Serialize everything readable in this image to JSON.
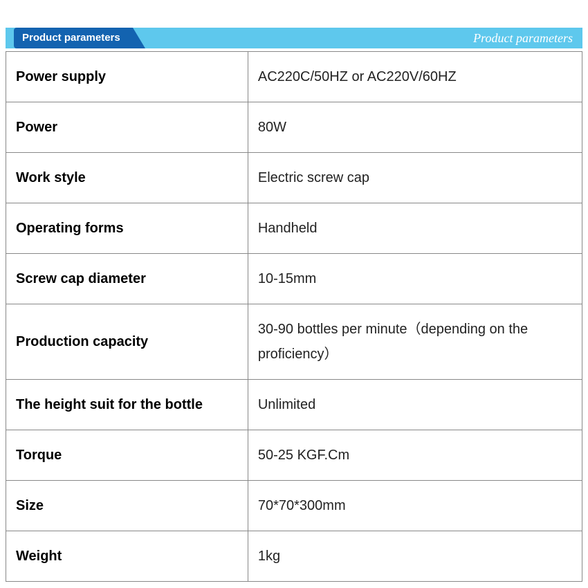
{
  "header": {
    "tab_label": "Product parameters",
    "script_label": "Product parameters",
    "bar_color": "#5ec8ed",
    "tab_color": "#1363b0",
    "text_color": "#ffffff"
  },
  "table": {
    "border_color": "#888888",
    "label_fontweight": 900,
    "value_fontweight": 300,
    "cell_fontsize": 20,
    "col_widths": [
      "42%",
      "58%"
    ],
    "rows": [
      {
        "label": "Power supply",
        "value": "AC220C/50HZ or AC220V/60HZ"
      },
      {
        "label": "Power",
        "value": "80W"
      },
      {
        "label": "Work style",
        "value": "Electric screw cap"
      },
      {
        "label": "Operating forms",
        "value": "Handheld"
      },
      {
        "label": "Screw cap diameter",
        "value": "10-15mm"
      },
      {
        "label": "Production capacity",
        "value": "30-90 bottles per minute（depending on the proficiency）"
      },
      {
        "label": "The height suit for the bottle",
        "value": "Unlimited"
      },
      {
        "label": "Torque",
        "value": "50-25 KGF.Cm"
      },
      {
        "label": "Size",
        "value": "70*70*300mm"
      },
      {
        "label": "Weight",
        "value": "1kg"
      }
    ]
  }
}
